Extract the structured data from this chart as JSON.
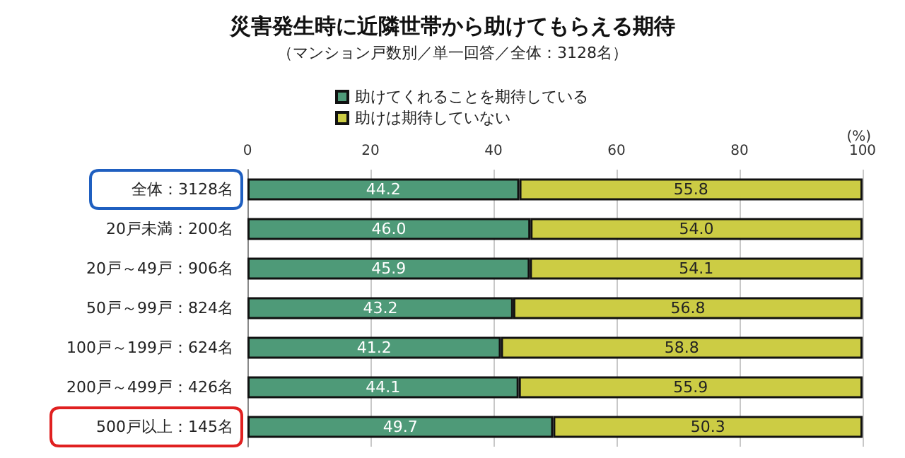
{
  "chart_data": {
    "type": "bar",
    "orientation": "horizontal",
    "stacked": true,
    "title": "災害発生時に近隣世帯から助けてもらえる期待",
    "subtitle": "（マンション戸数別／単一回答／全体：3128名）",
    "xlabel": "(%)",
    "categories": [
      "全体：3128名",
      "20戸未満：200名",
      "20戸～49戸：906名",
      "50戸～99戸：824名",
      "100戸～199戸：624名",
      "200戸～499戸：426名",
      "500戸以上：145名"
    ],
    "series": [
      {
        "name": "助けてくれることを期待している",
        "color": "#4e9a78",
        "values": [
          44.2,
          46.0,
          45.9,
          43.2,
          41.2,
          44.1,
          49.7
        ],
        "value_labels": [
          "44.2",
          "46.0",
          "45.9",
          "43.2",
          "41.2",
          "44.1",
          "49.7"
        ]
      },
      {
        "name": "助けは期待していない",
        "color": "#cccc44",
        "values": [
          55.8,
          54.0,
          54.1,
          56.8,
          58.8,
          55.9,
          50.3
        ],
        "value_labels": [
          "55.8",
          "54.0",
          "54.1",
          "56.8",
          "58.8",
          "55.9",
          "50.3"
        ]
      }
    ],
    "xlim": [
      0,
      100
    ],
    "xticks": [
      0,
      20,
      40,
      60,
      80,
      100
    ],
    "grid": "x",
    "legend": "top"
  }
}
